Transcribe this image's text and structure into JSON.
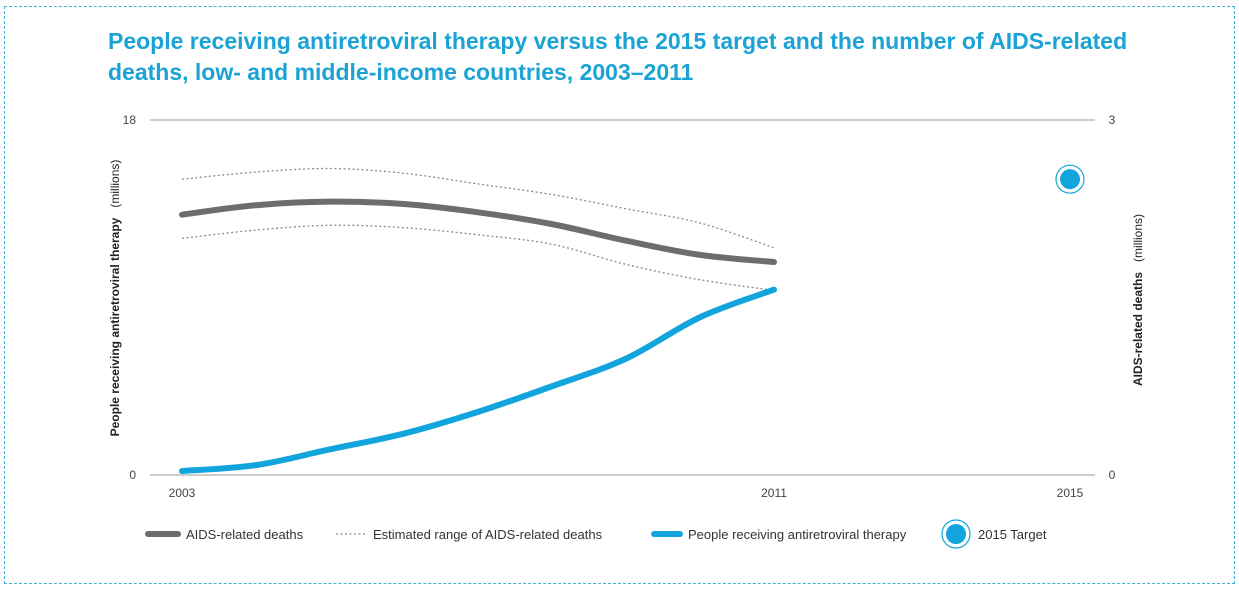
{
  "colors": {
    "title": "#1aa3d4",
    "deaths": "#6d6d6d",
    "range": "#8a8a8a",
    "therapy": "#12a4dc",
    "target": "#12a4dc",
    "grid": "#7a7a7a",
    "border": "#3fb0d8"
  },
  "chart_data": {
    "type": "line",
    "title": "People receiving antiretroviral therapy versus the 2015 target and the number of AIDS-related deaths, low- and middle-income countries, 2003–2011",
    "x_ticks": [
      "2003",
      "2011",
      "2015"
    ],
    "xlim": [
      2003,
      2015
    ],
    "y_left": {
      "label_bold": "People receiving antiretroviral  therapy",
      "label_unit": "(millions)",
      "ticks": [
        "0",
        "18"
      ],
      "ylim": [
        0,
        18
      ]
    },
    "y_right": {
      "label_bold": "AIDS-related deaths",
      "label_unit": "(millions)",
      "ticks": [
        "0",
        "3"
      ],
      "ylim": [
        0,
        3
      ]
    },
    "series": [
      {
        "name": "AIDS-related deaths",
        "axis": "right",
        "style": "thick-gray",
        "x": [
          2003,
          2004,
          2005,
          2006,
          2007,
          2008,
          2009,
          2010,
          2011
        ],
        "values": [
          2.2,
          2.28,
          2.31,
          2.29,
          2.22,
          2.12,
          1.98,
          1.86,
          1.8
        ]
      },
      {
        "name": "Estimated range of AIDS-related deaths",
        "axis": "right",
        "style": "dotted",
        "range": {
          "x": [
            2003,
            2004,
            2005,
            2006,
            2007,
            2008,
            2009,
            2010,
            2011
          ],
          "high": [
            2.5,
            2.56,
            2.59,
            2.55,
            2.46,
            2.37,
            2.25,
            2.13,
            1.92
          ],
          "low": [
            2.0,
            2.07,
            2.11,
            2.09,
            2.03,
            1.95,
            1.78,
            1.65,
            1.56
          ]
        }
      },
      {
        "name": "People receiving antiretroviral therapy",
        "axis": "left",
        "style": "thick-blue",
        "x": [
          2003,
          2004,
          2005,
          2006,
          2007,
          2008,
          2009,
          2010,
          2011
        ],
        "values": [
          0.2,
          0.5,
          1.3,
          2.1,
          3.2,
          4.5,
          5.9,
          8.0,
          9.4
        ]
      },
      {
        "name": "2015 Target",
        "axis": "left",
        "style": "target-marker",
        "x": [
          2015
        ],
        "values": [
          15
        ]
      }
    ],
    "legend": {
      "placement": "bottom",
      "items": [
        "AIDS-related deaths",
        "Estimated range of AIDS-related deaths",
        "People receiving antiretroviral therapy",
        "2015 Target"
      ]
    },
    "grid": "top and bottom reference lines only"
  }
}
